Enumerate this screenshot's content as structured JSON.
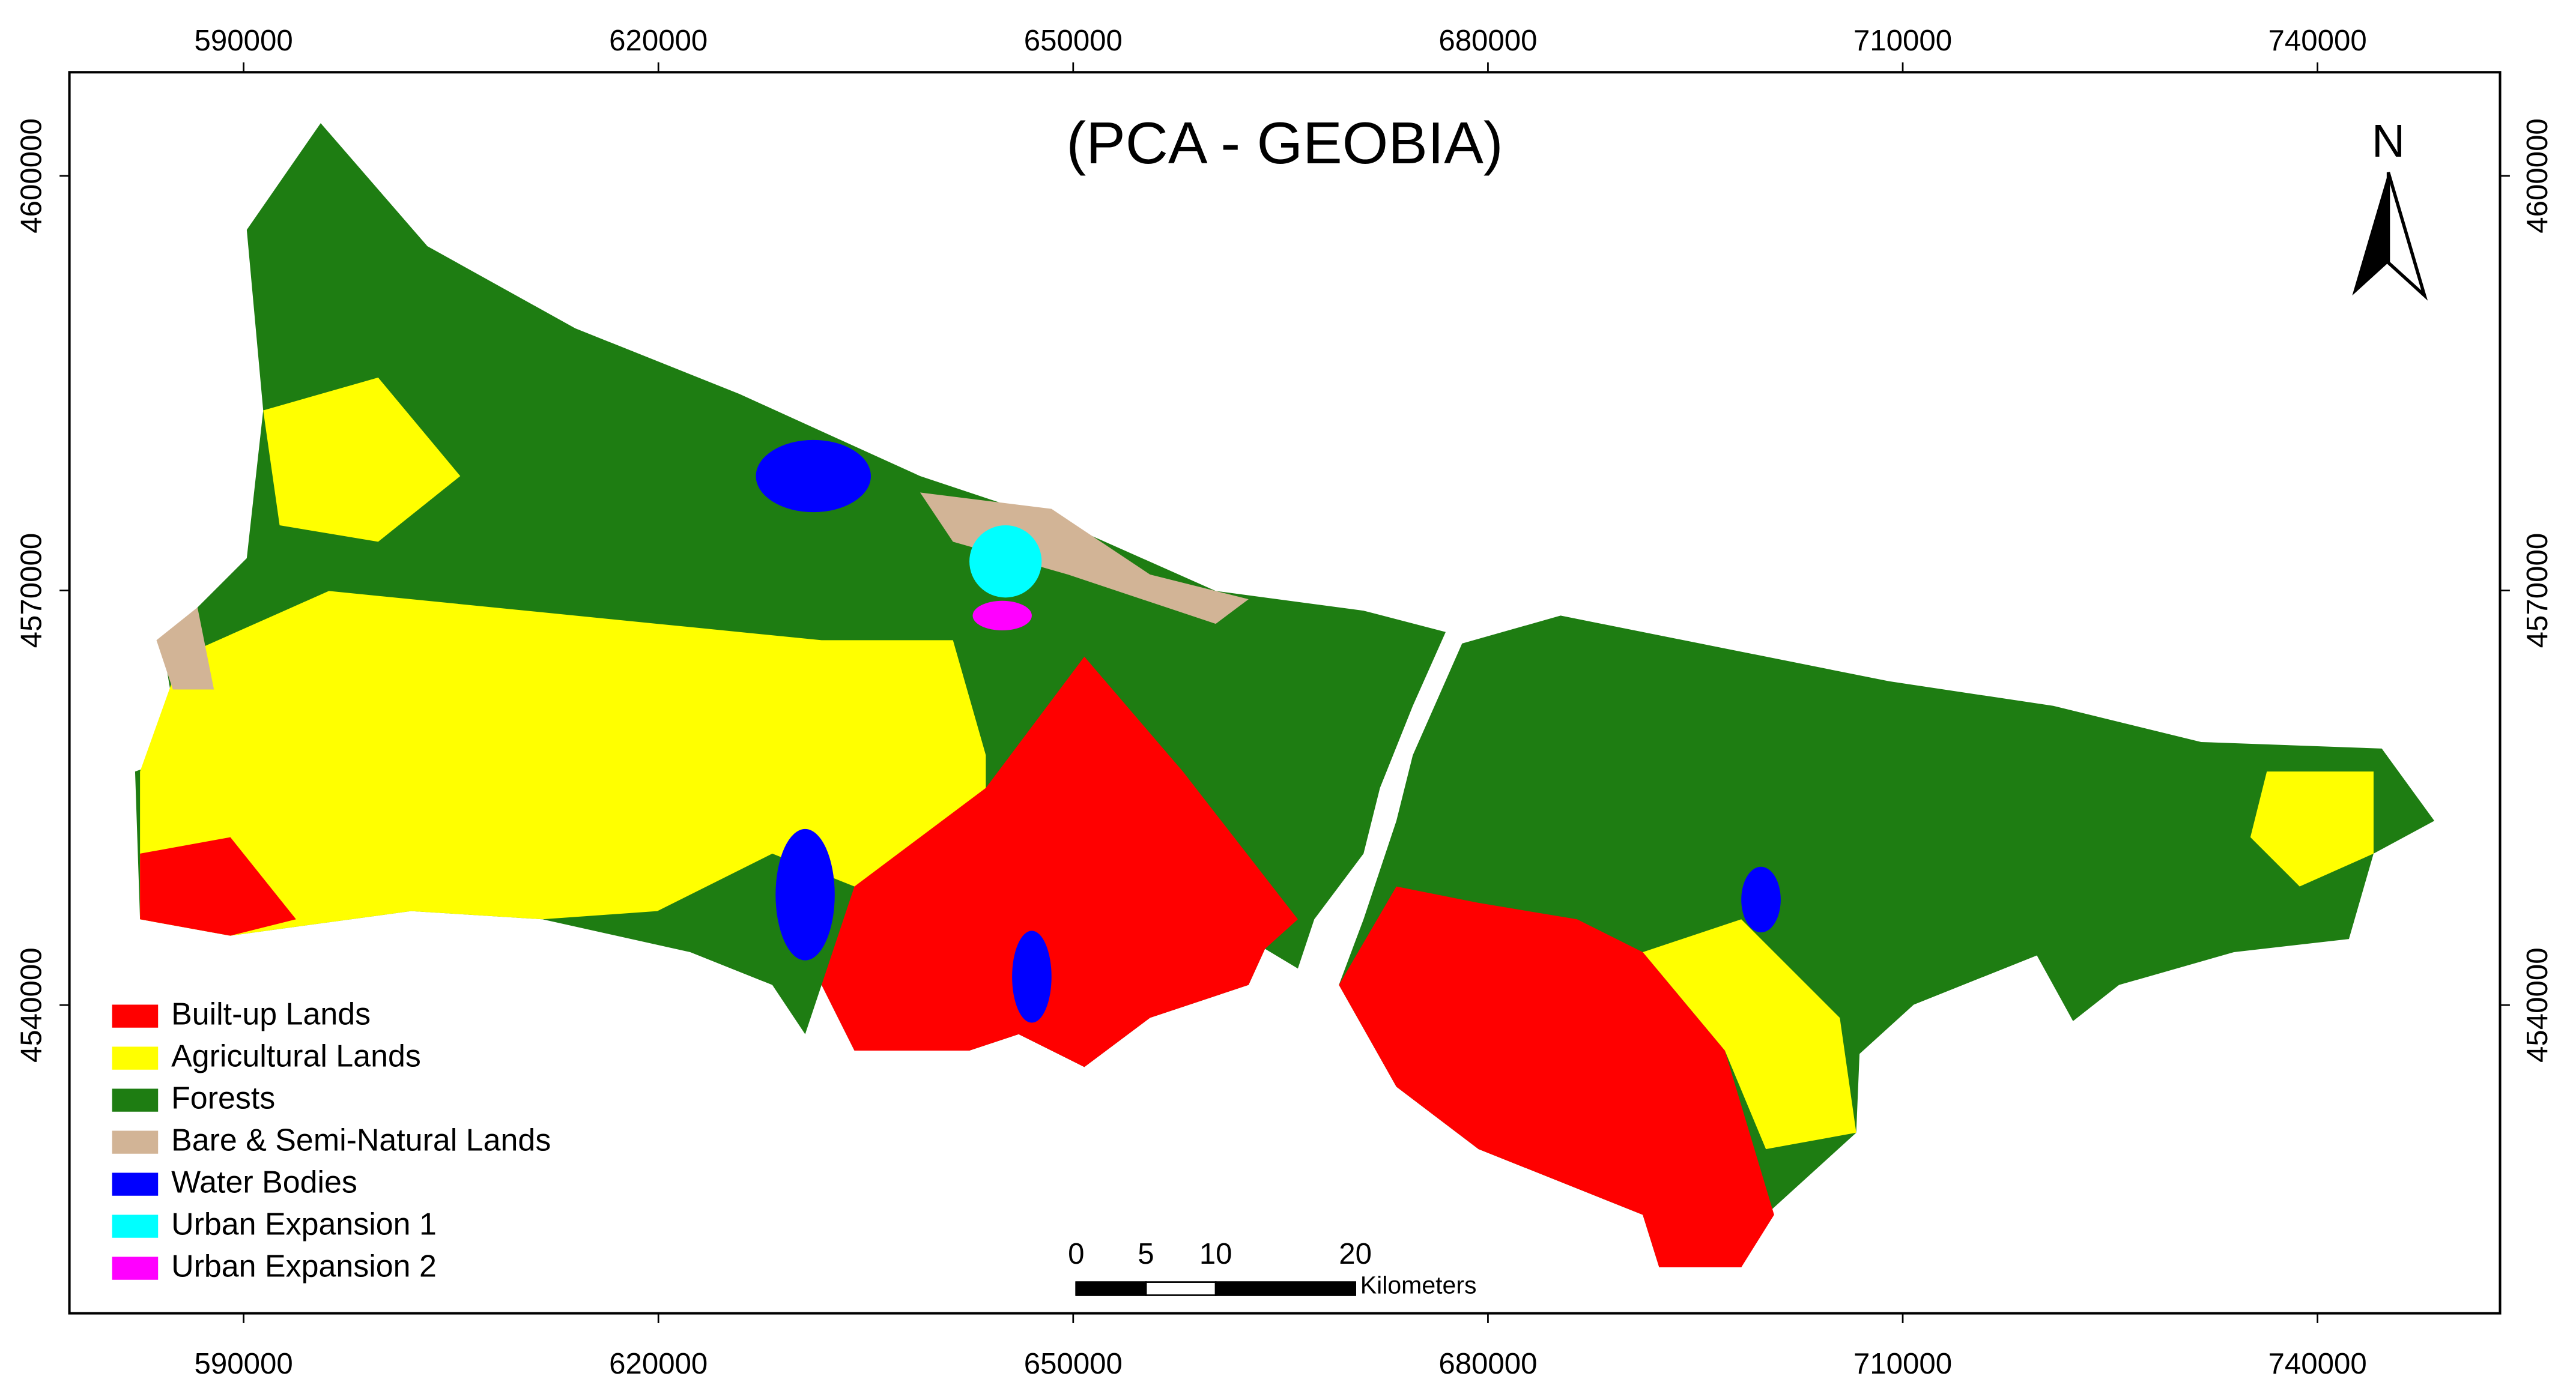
{
  "map": {
    "title": "(PCA - GEOBIA)",
    "north": "N",
    "xlim": [
      577400,
      753200
    ],
    "ylim": [
      4517700,
      4607500
    ],
    "xticks": [
      590000,
      620000,
      650000,
      680000,
      710000,
      740000
    ],
    "yticks": [
      4540000,
      4570000,
      4600000
    ],
    "legend": [
      {
        "name": "Built-up Lands",
        "color": "#ff0000"
      },
      {
        "name": "Agricultural Lands",
        "color": "#ffff00"
      },
      {
        "name": "Forests",
        "color": "#1e7d12"
      },
      {
        "name": "Bare & Semi-Natural Lands",
        "color": "#d2b496"
      },
      {
        "name": "Water Bodies",
        "color": "#0000ff"
      },
      {
        "name": "Urban Expansion 1",
        "color": "#00ffff"
      },
      {
        "name": "Urban Expansion 2",
        "color": "#ff00ff"
      }
    ],
    "scale_bar": {
      "ticks": [
        0,
        5,
        10,
        20
      ],
      "unit": "Kilometers"
    }
  }
}
